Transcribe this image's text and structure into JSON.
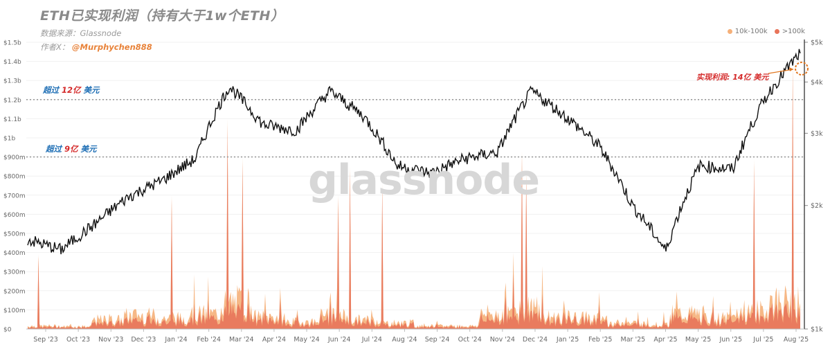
{
  "header": {
    "title": "ETH已实现利润（持有大于1w个ETH）",
    "source": "数据来源：Glassnode",
    "author_prefix": "作者X：",
    "author_handle": "@Murphychen888"
  },
  "watermark": "glassnode",
  "legend": [
    {
      "label": "10k-100k",
      "color": "#f5b079"
    },
    {
      "label": ">100k",
      "color": "#e8745a"
    }
  ],
  "annotations": {
    "level1_prefix": "超过",
    "level1_value": "12亿",
    "level1_suffix": "美元",
    "level2_prefix": "超过",
    "level2_value": "9亿",
    "level2_suffix": "美元",
    "latest": "实现利润: 14亿 美元"
  },
  "chart_data": {
    "type": "area+line",
    "x_ticks": [
      "Sep '23",
      "Oct '23",
      "Nov '23",
      "Dec '23",
      "Jan '24",
      "Feb '24",
      "Mar '24",
      "Apr '24",
      "May '24",
      "Jun '24",
      "Jul '24",
      "Aug '24",
      "Sep '24",
      "Oct '24",
      "Nov '24",
      "Dec '24",
      "Jan '25",
      "Feb '25",
      "Mar '25",
      "Apr '25",
      "May '25",
      "Jun '25",
      "Jul '25",
      "Aug '25"
    ],
    "left_axis": {
      "ticks": [
        "$0",
        "$50m",
        "$100m",
        "$150m",
        "$200m",
        "$250m",
        "$300m",
        "$350m",
        "$400m",
        "$450m",
        "$500m",
        "$550m",
        "$600m",
        "$650m",
        "$700m",
        "$750m",
        "$800m",
        "$850m",
        "$900m",
        "$950m",
        "$1b",
        "$1.05b",
        "$1.1b",
        "$1.15b",
        "$1.2b",
        "$1.25b",
        "$1.3b",
        "$1.35b",
        "$1.4b",
        "$1.45b",
        "$1.5b"
      ],
      "labeled_ticks": [
        "$0",
        "$100m",
        "$200m",
        "$300m",
        "$400m",
        "$500m",
        "$600m",
        "$700m",
        "$800m",
        "$900m",
        "$1b",
        "$1.1b",
        "$1.2b",
        "$1.3b",
        "$1.4b",
        "$1.5b"
      ],
      "ylim_usd_millions": [
        0,
        1500
      ]
    },
    "right_axis": {
      "ticks": [
        "$1k",
        "$2k",
        "$3k",
        "$4k",
        "$5k"
      ],
      "scale": "log"
    },
    "reference_lines_usd_millions": [
      1200,
      900
    ],
    "realized_profit_peaks": [
      {
        "month": "Sep '23",
        "value_m": 390
      },
      {
        "month": "Jan '24",
        "value_m": 700
      },
      {
        "month": "Mar '24",
        "value_m": 1100
      },
      {
        "month": "Mar '24",
        "value_m": 900
      },
      {
        "month": "Jun '24",
        "value_m": 700
      },
      {
        "month": "Jul '24",
        "value_m": 850
      },
      {
        "month": "Aug '24",
        "value_m": 760
      },
      {
        "month": "Dec '24",
        "value_m": 820
      },
      {
        "month": "Dec '24",
        "value_m": 930
      },
      {
        "month": "Jul '25",
        "value_m": 890
      },
      {
        "month": "Aug '25",
        "value_m": 1400
      }
    ],
    "eth_price_usd": [
      {
        "x": "Sep '23",
        "y": 1650
      },
      {
        "x": "Oct '23",
        "y": 1560
      },
      {
        "x": "Nov '23",
        "y": 1800
      },
      {
        "x": "Dec '23",
        "y": 2100
      },
      {
        "x": "Jan '24",
        "y": 2300
      },
      {
        "x": "Feb '24",
        "y": 2600
      },
      {
        "x": "Mar '24",
        "y": 3900
      },
      {
        "x": "Apr '24",
        "y": 3150
      },
      {
        "x": "May '24",
        "y": 3050
      },
      {
        "x": "Jun '24",
        "y": 3800
      },
      {
        "x": "Jul '24",
        "y": 3300
      },
      {
        "x": "Aug '24",
        "y": 2500
      },
      {
        "x": "Sep '24",
        "y": 2400
      },
      {
        "x": "Oct '24",
        "y": 2600
      },
      {
        "x": "Nov '24",
        "y": 2700
      },
      {
        "x": "Dec '24",
        "y": 3800
      },
      {
        "x": "Jan '25",
        "y": 3300
      },
      {
        "x": "Feb '25",
        "y": 2800
      },
      {
        "x": "Mar '25",
        "y": 2000
      },
      {
        "x": "Apr '25",
        "y": 1550
      },
      {
        "x": "May '25",
        "y": 2500
      },
      {
        "x": "Jun '25",
        "y": 2450
      },
      {
        "x": "Jul '25",
        "y": 3700
      },
      {
        "x": "Aug '25",
        "y": 4700
      }
    ]
  }
}
